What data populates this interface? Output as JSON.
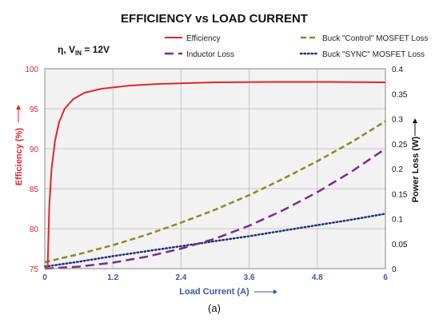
{
  "chart_data": {
    "type": "line",
    "title": "EFFICIENCY vs LOAD CURRENT",
    "annotation": {
      "prefix": "η, V",
      "subscript": "IN",
      "suffix": " = 12V"
    },
    "caption": "(a)",
    "xlabel": "Load Current (A)",
    "ylabel_left": "Efficiency (%)",
    "ylabel_right": "Power Loss (W)",
    "xlim": [
      0,
      6
    ],
    "x_ticks": [
      "0",
      "1.2",
      "2.4",
      "3.6",
      "4.8",
      "6"
    ],
    "x_tick_values": [
      0,
      1.2,
      2.4,
      3.6,
      4.8,
      6
    ],
    "ylim_left": [
      75,
      100
    ],
    "y_left_ticks": [
      "75",
      "80",
      "85",
      "90",
      "95",
      "100"
    ],
    "y_left_tick_values": [
      75,
      80,
      85,
      90,
      95,
      100
    ],
    "ylim_right": [
      0,
      0.4
    ],
    "y_right_ticks": [
      "0",
      "0.05",
      "0.1",
      "0.15",
      "0.2",
      "0.25",
      "0.3",
      "0.35",
      "0.4"
    ],
    "y_right_tick_values": [
      0,
      0.05,
      0.1,
      0.15,
      0.2,
      0.25,
      0.3,
      0.35,
      0.4
    ],
    "grid": true,
    "legend_placement": "top",
    "series": [
      {
        "name": "Efficiency",
        "axis": "left",
        "color": "#e0262b",
        "style": "solid",
        "x": [
          0.05,
          0.08,
          0.12,
          0.18,
          0.25,
          0.35,
          0.5,
          0.7,
          1.0,
          1.5,
          2.0,
          3.0,
          4.0,
          5.0,
          6.0
        ],
        "values": [
          75.0,
          83.0,
          87.5,
          91.0,
          93.3,
          95.0,
          96.2,
          97.0,
          97.5,
          97.9,
          98.1,
          98.3,
          98.35,
          98.35,
          98.3
        ]
      },
      {
        "name": "Inductor Loss",
        "axis": "right",
        "color": "#7b2a8c",
        "style": "long-dash",
        "x": [
          0,
          0.6,
          1.2,
          1.8,
          2.4,
          3.0,
          3.6,
          4.2,
          4.8,
          5.4,
          6.0
        ],
        "values": [
          0.0,
          0.004,
          0.012,
          0.024,
          0.04,
          0.06,
          0.086,
          0.117,
          0.153,
          0.194,
          0.24
        ]
      },
      {
        "name": "Buck \"Control\" MOSFET Loss",
        "axis": "right",
        "color": "#8a8a2a",
        "style": "dash",
        "x": [
          0,
          0.6,
          1.2,
          1.8,
          2.4,
          3.0,
          3.6,
          4.2,
          4.8,
          5.4,
          6.0
        ],
        "values": [
          0.013,
          0.029,
          0.047,
          0.068,
          0.092,
          0.118,
          0.147,
          0.18,
          0.215,
          0.253,
          0.295
        ]
      },
      {
        "name": "Buck \"SYNC\" MOSFET Loss",
        "axis": "right",
        "color": "#1f2f80",
        "style": "dot",
        "x": [
          0,
          0.6,
          1.2,
          1.8,
          2.4,
          3.0,
          3.6,
          4.2,
          4.8,
          5.4,
          6.0
        ],
        "values": [
          0.004,
          0.014,
          0.025,
          0.035,
          0.045,
          0.055,
          0.065,
          0.076,
          0.087,
          0.098,
          0.11
        ]
      }
    ]
  }
}
